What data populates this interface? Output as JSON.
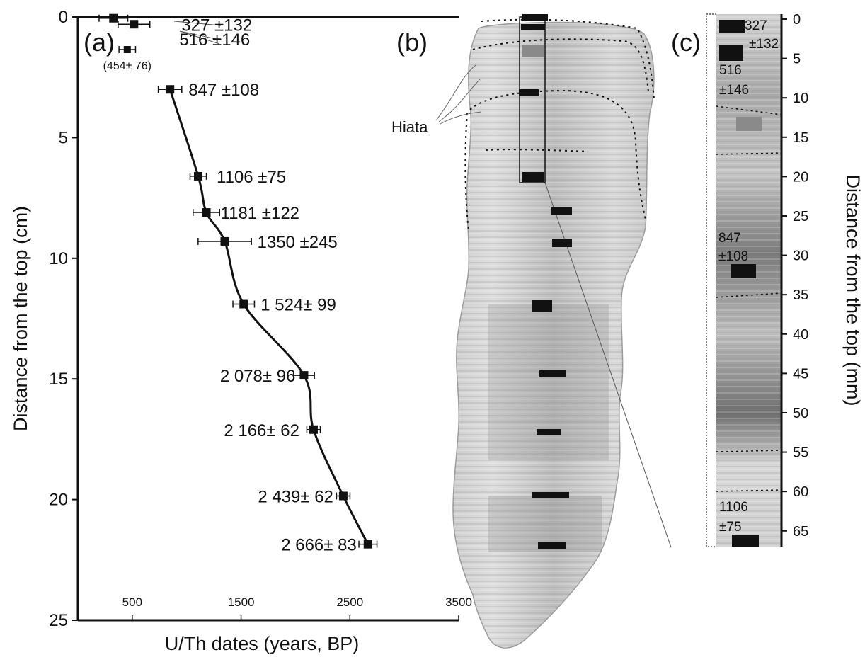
{
  "panels": {
    "a": "(a)",
    "b": "(b)",
    "c": "(c)"
  },
  "hiata_label": "Hiata",
  "chart_data": {
    "type": "line",
    "title": "",
    "xlabel": "U/Th dates (years, BP)",
    "ylabel": "Distance from the top (cm)",
    "x_ticks": [
      "500",
      "1500",
      "2500",
      "3500"
    ],
    "y_ticks": [
      "0",
      "5",
      "10",
      "15",
      "20",
      "25"
    ],
    "xlim": [
      0,
      3500
    ],
    "ylim": [
      0,
      25
    ],
    "y_inverted": true,
    "points": [
      {
        "x": 327,
        "y": 0.05,
        "err": 132,
        "label": "327 ±132"
      },
      {
        "x": 516,
        "y": 0.3,
        "err": 146,
        "label": "516 ±146"
      },
      {
        "x": 454,
        "y": 1.35,
        "err": 76,
        "label": "(454± 76)",
        "excluded": true
      },
      {
        "x": 847,
        "y": 3.0,
        "err": 108,
        "label": "847 ±108"
      },
      {
        "x": 1106,
        "y": 6.6,
        "err": 75,
        "label": "1106 ±75"
      },
      {
        "x": 1181,
        "y": 8.1,
        "err": 122,
        "label": "1181 ±122"
      },
      {
        "x": 1350,
        "y": 9.3,
        "err": 245,
        "label": "1350 ±245"
      },
      {
        "x": 1524,
        "y": 11.9,
        "err": 99,
        "label": "1 524± 99"
      },
      {
        "x": 2078,
        "y": 14.85,
        "err": 96,
        "label": "2 078± 96"
      },
      {
        "x": 2166,
        "y": 17.1,
        "err": 62,
        "label": "2 166± 62"
      },
      {
        "x": 2439,
        "y": 19.85,
        "err": 62,
        "label": "2 439± 62"
      },
      {
        "x": 2666,
        "y": 21.85,
        "err": 83,
        "label": "2 666± 83"
      }
    ]
  },
  "panel_c": {
    "ylabel": "Distance from the top (mm)",
    "ticks": [
      "0",
      "5",
      "10",
      "15",
      "20",
      "25",
      "30",
      "35",
      "40",
      "45",
      "50",
      "55",
      "60",
      "65"
    ],
    "ylim": [
      0,
      67
    ],
    "labels": [
      {
        "lines": [
          "327",
          "±132"
        ]
      },
      {
        "lines": [
          "516",
          "±146"
        ]
      },
      {
        "lines": [
          "847",
          "±108"
        ]
      },
      {
        "lines": [
          "1106",
          "±75"
        ]
      }
    ]
  }
}
